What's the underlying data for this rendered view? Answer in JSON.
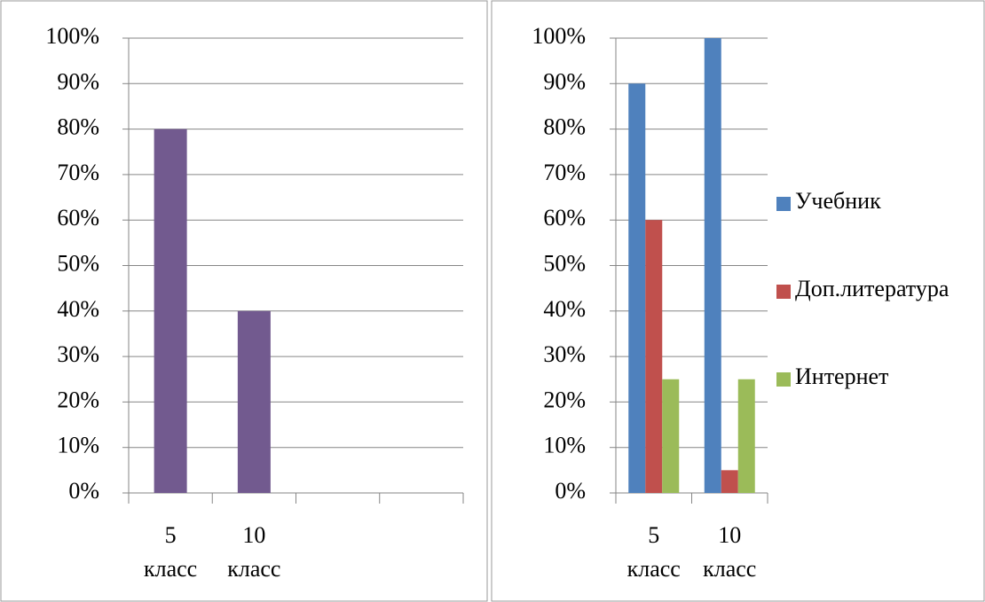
{
  "chart_data": [
    {
      "type": "bar",
      "categories": [
        "5 класс",
        "10 класс",
        null,
        null
      ],
      "values": [
        80,
        40,
        null,
        null
      ],
      "color": "#725a8f",
      "ylim": [
        0,
        100
      ],
      "yticks": [
        {
          "value": 0,
          "label": "0%"
        },
        {
          "value": 10,
          "label": "10%"
        },
        {
          "value": 20,
          "label": "20%"
        },
        {
          "value": 30,
          "label": "30%"
        },
        {
          "value": 40,
          "label": "40%"
        },
        {
          "value": 50,
          "label": "50%"
        },
        {
          "value": 60,
          "label": "60%"
        },
        {
          "value": 70,
          "label": "70%"
        },
        {
          "value": 80,
          "label": "80%"
        },
        {
          "value": 90,
          "label": "90%"
        },
        {
          "value": 100,
          "label": "100%"
        }
      ],
      "grid": true
    },
    {
      "type": "bar",
      "categories": [
        "5 класс",
        "10 класс"
      ],
      "series": [
        {
          "name": "Учебник",
          "color": "#4f81bd",
          "values": [
            90,
            100
          ]
        },
        {
          "name": "Доп.литература",
          "color": "#c0504d",
          "values": [
            60,
            5
          ]
        },
        {
          "name": "Интернет",
          "color": "#9bbb59",
          "values": [
            25,
            25
          ]
        }
      ],
      "ylim": [
        0,
        100
      ],
      "yticks": [
        {
          "value": 0,
          "label": "0%"
        },
        {
          "value": 10,
          "label": "10%"
        },
        {
          "value": 20,
          "label": "20%"
        },
        {
          "value": 30,
          "label": "30%"
        },
        {
          "value": 40,
          "label": "40%"
        },
        {
          "value": 50,
          "label": "50%"
        },
        {
          "value": 60,
          "label": "60%"
        },
        {
          "value": 70,
          "label": "70%"
        },
        {
          "value": 80,
          "label": "80%"
        },
        {
          "value": 90,
          "label": "90%"
        },
        {
          "value": 100,
          "label": "100%"
        }
      ],
      "grid": true,
      "legend": "right"
    }
  ]
}
